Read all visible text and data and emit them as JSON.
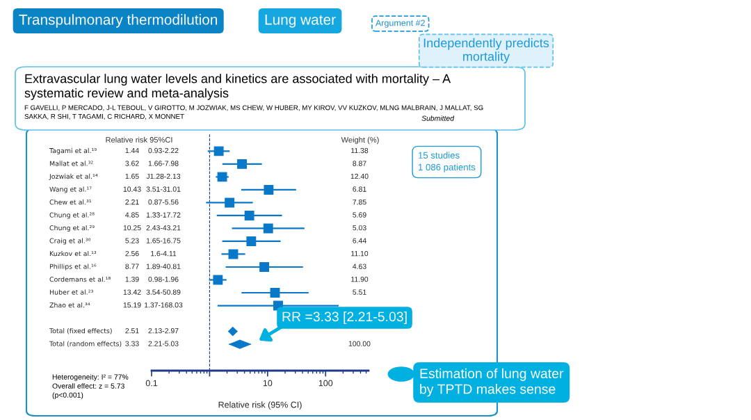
{
  "chart_data": {
    "type": "scatter",
    "orientation": "horizontal",
    "categories": [
      "Tagami et al.¹⁹",
      "Mallat et al.³²",
      "Jozwiak et al.¹⁴",
      "Wang et al.¹⁷",
      "Chew et al.³¹",
      "Chung et al.²⁸",
      "Chung et al.²⁹",
      "Craig et al.³⁰",
      "Kuzkov et al.¹³",
      "Phillips et al.¹⁶",
      "Cordemans et al.¹⁸",
      "Huber et al.²³",
      "Zhao et al.³⁴",
      null,
      "Total (fixed effects)",
      "Total (random effects)"
    ],
    "series": [
      {
        "color": "#0a78c8",
        "marker": "square",
        "values": [
          1.44,
          3.62,
          1.65,
          10.43,
          2.21,
          4.85,
          10.25,
          5.23,
          2.56,
          8.77,
          1.39,
          13.42,
          15.19,
          null,
          null,
          null
        ],
        "errors": [
          [
            0.93,
            2.22
          ],
          [
            1.66,
            7.98
          ],
          [
            1.28,
            2.13
          ],
          [
            3.51,
            31.01
          ],
          [
            0.87,
            5.56
          ],
          [
            1.33,
            17.72
          ],
          [
            2.43,
            43.21
          ],
          [
            1.65,
            16.75
          ],
          [
            1.6,
            4.11
          ],
          [
            1.89,
            40.81
          ],
          [
            0.98,
            1.96
          ],
          [
            3.54,
            50.89
          ],
          [
            1.37,
            168.03
          ],
          null,
          null,
          null
        ]
      },
      {
        "color": "#0a78c8",
        "marker": "diamond",
        "values": [
          null,
          null,
          null,
          null,
          null,
          null,
          null,
          null,
          null,
          null,
          null,
          null,
          null,
          null,
          2.51,
          3.33
        ],
        "errors": [
          null,
          null,
          null,
          null,
          null,
          null,
          null,
          null,
          null,
          null,
          null,
          null,
          null,
          null,
          [
            2.13,
            2.97
          ],
          [
            2.21,
            5.03
          ]
        ]
      }
    ],
    "xlabel": "Relative risk (95% CI)",
    "log": "x",
    "xlim": [
      0.1,
      550
    ],
    "xticks": [
      {
        "value": 0.1,
        "label": "0.1"
      },
      {
        "value": 1,
        "label": null
      },
      10,
      100
    ],
    "ref_lines": [
      {
        "axis": "x",
        "value": 1,
        "line_style": "dashed",
        "color": "#1f3a8a"
      }
    ],
    "grid": false,
    "annotations": [
      "Transpulmonary thermodilution",
      "Lung water",
      "Argument #2",
      "Independently predicts\nmortality",
      "Extravascular lung water levels and kinetics are associated with mortality – A\nsystematic review and meta-analysis",
      "F GAVELLI, P MERCADO, J-L TEBOUL, V GIROTTO, M JOZWIAK, MS CHEW, W HUBER, MY KIROV, VV KUZKOV, MLNG MALBRAIN, J MALLAT, SG\nSAKKA, R SHI, T TAGAMI, C RICHARD, X MONNET",
      "Submitted",
      "Relative risk 95%CI",
      "Weight (%)",
      "15 studies\n1 086 patients",
      "Heterogeneity: I² = 77%",
      "Overall effect: z = 5.73",
      "(p<0.001)",
      "Estimation of lung water\nby TPTD makes sense",
      "RR =3.33 [2.21-5.03]",
      "1.44",
      "0.93-2.22",
      "11.38",
      "3.62",
      "1.66-7.98",
      "8.87",
      "1.65",
      "J1.28-2.13",
      "12.40",
      "10.43",
      "3.51-31.01",
      "6.81",
      "2.21",
      "0.87-5.56",
      "7.85",
      "4.85",
      "1.33-17.72",
      "5.69",
      "10.25",
      "2.43-43.21",
      "5.03",
      "5.23",
      "1.65-16.75",
      "6.44",
      "2.56",
      "1.6-4.11",
      "11.10",
      "8.77",
      "1.89-40.81",
      "4.63",
      "1.39",
      "0.98-1.96",
      "11.90",
      "13.42",
      "3.54-50.89",
      "5.51",
      "15.19",
      "1.37-168.03",
      "2.51",
      "2.13-2.97",
      "3.33",
      "2.21-5.03",
      "100.00"
    ]
  }
}
